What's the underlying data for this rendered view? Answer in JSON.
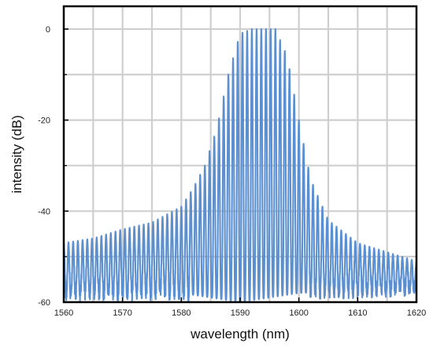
{
  "chart_data": {
    "type": "line",
    "title": "",
    "xlabel": "wavelength (nm)",
    "ylabel": "intensity (dB)",
    "xlim": [
      1560,
      1620
    ],
    "ylim": [
      -60,
      5
    ],
    "x_ticks": [
      1560,
      1570,
      1580,
      1590,
      1600,
      1610,
      1620
    ],
    "x_tick_labels": [
      "1560",
      "1570",
      "1580",
      "1590",
      "1600",
      "1610",
      "1620"
    ],
    "y_ticks": [
      -60,
      -40,
      -20,
      0
    ],
    "y_tick_labels": [
      "-60",
      "-40",
      "-20",
      "0"
    ],
    "grid": true,
    "legend": "none",
    "series": [
      {
        "color": "#5b8fcf",
        "comb_spacing_nm": 0.8,
        "peak_envelope": {
          "x": [
            1560,
            1565,
            1570,
            1575,
            1580,
            1582,
            1584,
            1586,
            1588,
            1590,
            1592,
            1594,
            1596,
            1598,
            1600,
            1602,
            1605,
            1610,
            1615,
            1620
          ],
          "y": [
            -47,
            -46,
            -44,
            -42.5,
            -39,
            -35,
            -30,
            -22,
            -10,
            -1,
            0,
            0,
            0,
            -6,
            -20,
            -33,
            -42,
            -47,
            -49,
            -51
          ]
        },
        "floor_envelope": {
          "x": [
            1560,
            1580,
            1590,
            1600,
            1620
          ],
          "y": [
            -58,
            -58,
            -60,
            -58,
            -57
          ]
        }
      }
    ]
  }
}
